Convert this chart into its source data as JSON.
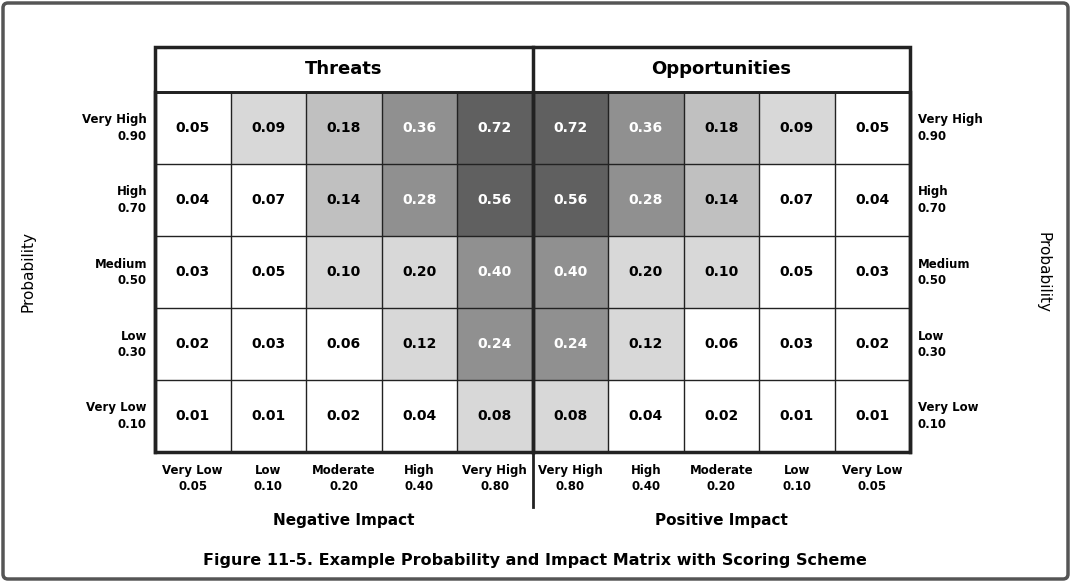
{
  "title": "Figure 11-5. Example Probability and Impact Matrix with Scoring Scheme",
  "threats_header": "Threats",
  "opportunities_header": "Opportunities",
  "prob_label": "Probability",
  "neg_impact_label": "Negative Impact",
  "pos_impact_label": "Positive Impact",
  "row_labels": [
    [
      "Very High",
      "0.90"
    ],
    [
      "High",
      "0.70"
    ],
    [
      "Medium",
      "0.50"
    ],
    [
      "Low",
      "0.30"
    ],
    [
      "Very Low",
      "0.10"
    ]
  ],
  "threats_col_labels": [
    [
      "Very Low",
      "0.05"
    ],
    [
      "Low",
      "0.10"
    ],
    [
      "Moderate",
      "0.20"
    ],
    [
      "High",
      "0.40"
    ],
    [
      "Very High",
      "0.80"
    ]
  ],
  "opportunities_col_labels": [
    [
      "Very High",
      "0.80"
    ],
    [
      "High",
      "0.40"
    ],
    [
      "Moderate",
      "0.20"
    ],
    [
      "Low",
      "0.10"
    ],
    [
      "Very Low",
      "0.05"
    ]
  ],
  "cell_values": [
    [
      "0.05",
      "0.09",
      "0.18",
      "0.36",
      "0.72",
      "0.72",
      "0.36",
      "0.18",
      "0.09",
      "0.05"
    ],
    [
      "0.04",
      "0.07",
      "0.14",
      "0.28",
      "0.56",
      "0.56",
      "0.28",
      "0.14",
      "0.07",
      "0.04"
    ],
    [
      "0.03",
      "0.05",
      "0.10",
      "0.20",
      "0.40",
      "0.40",
      "0.20",
      "0.10",
      "0.05",
      "0.03"
    ],
    [
      "0.02",
      "0.03",
      "0.06",
      "0.12",
      "0.24",
      "0.24",
      "0.12",
      "0.06",
      "0.03",
      "0.02"
    ],
    [
      "0.01",
      "0.01",
      "0.02",
      "0.04",
      "0.08",
      "0.08",
      "0.04",
      "0.02",
      "0.01",
      "0.01"
    ]
  ],
  "cell_colors": [
    [
      "#FFFFFF",
      "#D8D8D8",
      "#C0C0C0",
      "#909090",
      "#606060",
      "#606060",
      "#909090",
      "#C0C0C0",
      "#D8D8D8",
      "#FFFFFF"
    ],
    [
      "#FFFFFF",
      "#FFFFFF",
      "#C0C0C0",
      "#909090",
      "#606060",
      "#606060",
      "#909090",
      "#C0C0C0",
      "#FFFFFF",
      "#FFFFFF"
    ],
    [
      "#FFFFFF",
      "#FFFFFF",
      "#D8D8D8",
      "#D8D8D8",
      "#909090",
      "#909090",
      "#D8D8D8",
      "#D8D8D8",
      "#FFFFFF",
      "#FFFFFF"
    ],
    [
      "#FFFFFF",
      "#FFFFFF",
      "#FFFFFF",
      "#D8D8D8",
      "#909090",
      "#909090",
      "#D8D8D8",
      "#FFFFFF",
      "#FFFFFF",
      "#FFFFFF"
    ],
    [
      "#FFFFFF",
      "#FFFFFF",
      "#FFFFFF",
      "#FFFFFF",
      "#D8D8D8",
      "#D8D8D8",
      "#FFFFFF",
      "#FFFFFF",
      "#FFFFFF",
      "#FFFFFF"
    ]
  ],
  "text_colors": [
    [
      "#000000",
      "#000000",
      "#000000",
      "#FFFFFF",
      "#FFFFFF",
      "#FFFFFF",
      "#FFFFFF",
      "#000000",
      "#000000",
      "#000000"
    ],
    [
      "#000000",
      "#000000",
      "#000000",
      "#FFFFFF",
      "#FFFFFF",
      "#FFFFFF",
      "#FFFFFF",
      "#000000",
      "#000000",
      "#000000"
    ],
    [
      "#000000",
      "#000000",
      "#000000",
      "#000000",
      "#FFFFFF",
      "#FFFFFF",
      "#000000",
      "#000000",
      "#000000",
      "#000000"
    ],
    [
      "#000000",
      "#000000",
      "#000000",
      "#000000",
      "#FFFFFF",
      "#FFFFFF",
      "#000000",
      "#000000",
      "#000000",
      "#000000"
    ],
    [
      "#000000",
      "#000000",
      "#000000",
      "#000000",
      "#000000",
      "#000000",
      "#000000",
      "#000000",
      "#000000",
      "#000000"
    ]
  ],
  "background_color": "#FFFFFF",
  "border_color": "#222222",
  "grid_color": "#222222",
  "outer_box_color": "#555555"
}
